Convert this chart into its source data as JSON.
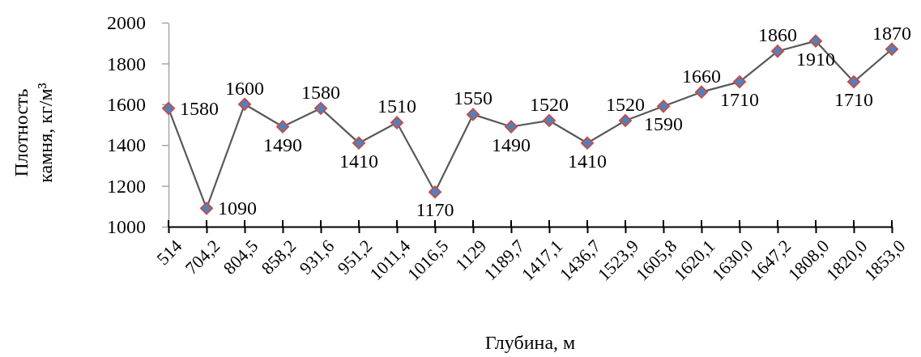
{
  "chart_data": {
    "type": "line",
    "xlabel": "Глубина, м",
    "ylabel": "Плотность камня, кг/м³",
    "categories": [
      "514",
      "704,2",
      "804,5",
      "858,2",
      "931,6",
      "951,2",
      "1011,4",
      "1016,5",
      "1129",
      "1189,7",
      "1417,1",
      "1436,7",
      "1523,9",
      "1605,8",
      "1620,1",
      "1630,0",
      "1647,2",
      "1808,0",
      "1820,0",
      "1853,0"
    ],
    "series": [
      {
        "color": "#595959",
        "values": [
          1580,
          1090,
          1600,
          1490,
          1580,
          1410,
          1510,
          1170,
          1550,
          1490,
          1520,
          1410,
          1520,
          1590,
          1660,
          1710,
          1860,
          1910,
          1710,
          1870
        ]
      }
    ],
    "ylim": [
      1000,
      2000
    ],
    "yticks": [
      1000,
      1200,
      1400,
      1600,
      1800,
      2000
    ],
    "marker": "diamond",
    "line_style": "solid",
    "data_labels": true
  }
}
